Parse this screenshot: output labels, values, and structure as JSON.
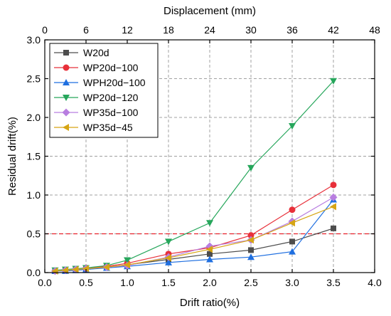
{
  "chart_data": {
    "type": "line",
    "title": "",
    "xlabel": "Drift ratio(%)",
    "ylabel": "Residual drift(%)",
    "x2label": "Displacement (mm)",
    "xlim": [
      0,
      4.0
    ],
    "ylim": [
      0,
      3.0
    ],
    "x2lim": [
      0,
      48
    ],
    "xticks": [
      "0.0",
      "0.5",
      "1.0",
      "1.5",
      "2.0",
      "2.5",
      "3.0",
      "3.5",
      "4.0"
    ],
    "yticks": [
      "0.0",
      "0.5",
      "1.0",
      "1.5",
      "2.0",
      "2.5",
      "3.0"
    ],
    "x2ticks": [
      "0",
      "6",
      "12",
      "18",
      "24",
      "30",
      "36",
      "42",
      "48"
    ],
    "grid": "dashed gray at major ticks",
    "legend_position": "top-left",
    "reference_line": {
      "y": 0.5,
      "color": "#e8202a",
      "style": "dashed"
    },
    "x": [
      0.125,
      0.25,
      0.375,
      0.5,
      0.75,
      1.0,
      1.5,
      2.0,
      2.5,
      3.0,
      3.5
    ],
    "series": [
      {
        "name": "W20d",
        "color": "#4d4d4d",
        "marker": "square",
        "values": [
          0.02,
          0.03,
          0.04,
          0.05,
          0.07,
          0.1,
          0.17,
          0.24,
          0.29,
          0.4,
          0.57
        ]
      },
      {
        "name": "WP20d−100",
        "color": "#e8303a",
        "marker": "circle",
        "values": [
          0.02,
          0.03,
          0.04,
          0.06,
          0.08,
          0.12,
          0.24,
          0.32,
          0.48,
          0.81,
          1.13
        ]
      },
      {
        "name": "WPH20d−100",
        "color": "#1f6fe0",
        "marker": "triangle-up",
        "values": [
          0.02,
          0.02,
          0.03,
          0.04,
          0.06,
          0.08,
          0.13,
          0.17,
          0.2,
          0.27,
          0.94
        ]
      },
      {
        "name": "WP20d−120",
        "color": "#26a65b",
        "marker": "triangle-down",
        "values": [
          0.03,
          0.04,
          0.05,
          0.06,
          0.09,
          0.16,
          0.4,
          0.64,
          1.35,
          1.89,
          2.47
        ]
      },
      {
        "name": "WP35d−100",
        "color": "#b87ee0",
        "marker": "diamond",
        "values": [
          0.02,
          0.03,
          0.04,
          0.05,
          0.07,
          0.09,
          0.2,
          0.34,
          0.42,
          0.66,
          0.97
        ]
      },
      {
        "name": "WP35d−45",
        "color": "#d6a514",
        "marker": "triangle-left",
        "values": [
          0.02,
          0.03,
          0.04,
          0.05,
          0.07,
          0.1,
          0.19,
          0.3,
          0.42,
          0.64,
          0.85
        ]
      }
    ]
  }
}
